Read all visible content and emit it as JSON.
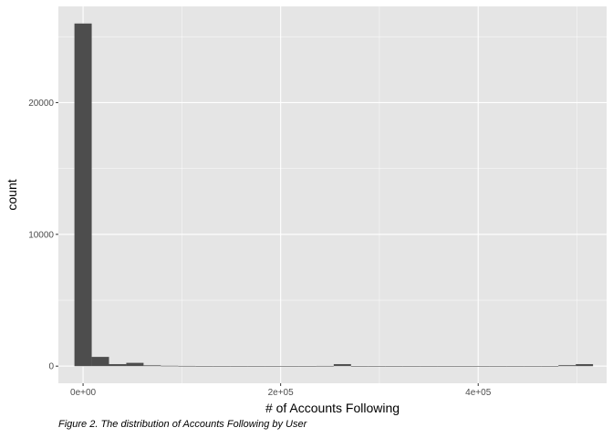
{
  "chart_data": {
    "type": "bar",
    "subtype": "histogram",
    "bins": 30,
    "bin_width": 17500,
    "xlabel": "# of Accounts Following",
    "ylabel": "count",
    "caption": "Figure 2. The distribution of Accounts Following by User",
    "xlim": [
      -25000,
      530000
    ],
    "ylim": [
      -1300,
      27300
    ],
    "x_ticks": [
      0,
      200000,
      400000
    ],
    "x_tick_labels": [
      "0e+00",
      "2e+05",
      "4e+05"
    ],
    "y_ticks": [
      0,
      10000,
      20000
    ],
    "y_tick_labels": [
      "0",
      "10000",
      "20000"
    ],
    "grid": true,
    "bin_centers": [
      0,
      17500,
      35000,
      52500,
      70000,
      87500,
      105000,
      122500,
      140000,
      157500,
      175000,
      192500,
      210000,
      227500,
      245000,
      262500,
      280000,
      297500,
      315000,
      332500,
      350000,
      367500,
      385000,
      402500,
      420000,
      437500,
      455000,
      472500,
      490000,
      507500
    ],
    "values": [
      26000,
      700,
      150,
      250,
      60,
      30,
      20,
      10,
      8,
      6,
      5,
      4,
      3,
      3,
      20,
      150,
      10,
      5,
      3,
      3,
      2,
      2,
      2,
      2,
      2,
      2,
      2,
      10,
      70,
      150
    ]
  },
  "colors": {
    "panel_background": "#e5e5e5",
    "grid_major": "#ffffff",
    "bar_fill": "#4d4d4d",
    "axis_text": "#4d4d4d"
  }
}
